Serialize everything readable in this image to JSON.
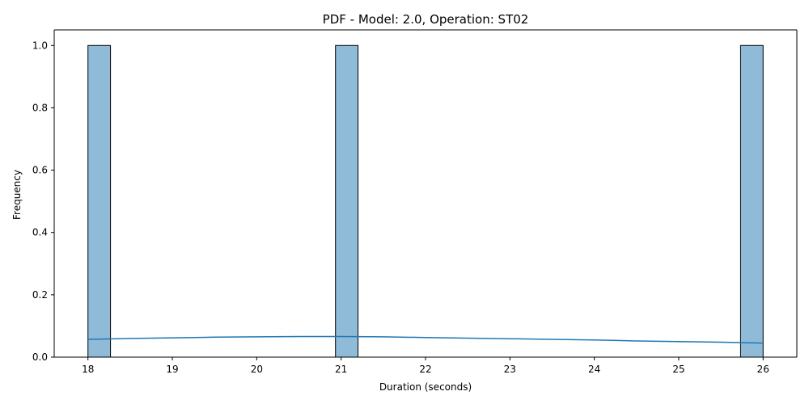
{
  "chart_data": {
    "type": "histogram",
    "title": "PDF - Model: 2.0, Operation: ST02",
    "xlabel": "Duration (seconds)",
    "ylabel": "Frequency",
    "xlim": [
      17.6,
      26.4
    ],
    "ylim": [
      0,
      1.05
    ],
    "x_ticks": [
      18,
      19,
      20,
      21,
      22,
      23,
      24,
      25,
      26
    ],
    "y_ticks": [
      0.0,
      0.2,
      0.4,
      0.6,
      0.8,
      1.0
    ],
    "x_tick_labels": [
      "18",
      "19",
      "20",
      "21",
      "22",
      "23",
      "24",
      "25",
      "26"
    ],
    "y_tick_labels": [
      "0.0",
      "0.2",
      "0.4",
      "0.6",
      "0.8",
      "1.0"
    ],
    "bars": [
      {
        "x0": 18.0,
        "x1": 18.267,
        "value": 1
      },
      {
        "x0": 20.933,
        "x1": 21.2,
        "value": 1
      },
      {
        "x0": 25.733,
        "x1": 26.0,
        "value": 1
      }
    ],
    "kde": {
      "x": [
        18,
        18.5,
        19,
        19.5,
        20,
        20.5,
        21,
        21.5,
        22,
        22.5,
        23,
        23.5,
        24,
        24.5,
        25,
        25.5,
        26
      ],
      "y": [
        0.057,
        0.06,
        0.062,
        0.064,
        0.065,
        0.066,
        0.066,
        0.065,
        0.063,
        0.061,
        0.059,
        0.057,
        0.055,
        0.052,
        0.05,
        0.048,
        0.045
      ]
    },
    "colors": {
      "bar_fill": "#8fbbd9",
      "bar_edge": "#000000",
      "kde_line": "#1f77b4"
    },
    "grid": false,
    "legend": "none"
  }
}
